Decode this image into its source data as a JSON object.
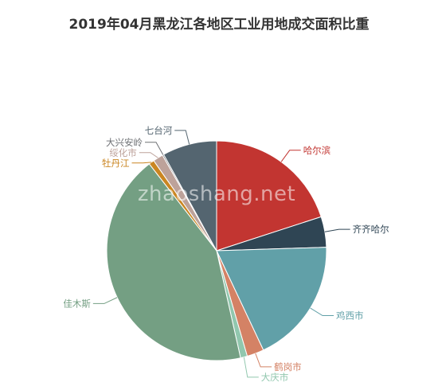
{
  "chart_data": {
    "type": "pie",
    "title": "2019年04月黑龙江各地区工业用地成交面积比重",
    "slices": [
      {
        "name": "哈尔滨",
        "value": 20.0,
        "color": "#c23531"
      },
      {
        "name": "齐齐哈尔",
        "value": 4.5,
        "color": "#2f4554"
      },
      {
        "name": "鸡西市",
        "value": 18.5,
        "color": "#61a0a8"
      },
      {
        "name": "鹤岗市",
        "value": 2.5,
        "color": "#d48265"
      },
      {
        "name": "大庆市",
        "value": 1.0,
        "color": "#91c7ae"
      },
      {
        "name": "佳木斯",
        "value": 43.0,
        "color": "#749f83"
      },
      {
        "name": "牡丹江",
        "value": 0.8,
        "color": "#ca8622"
      },
      {
        "name": "绥化市",
        "value": 1.5,
        "color": "#bda29a"
      },
      {
        "name": "大兴安岭",
        "value": 0.2,
        "color": "#6e7074"
      },
      {
        "name": "七台河",
        "value": 8.0,
        "color": "#546570"
      }
    ]
  },
  "watermark": "zhaoshang.net"
}
